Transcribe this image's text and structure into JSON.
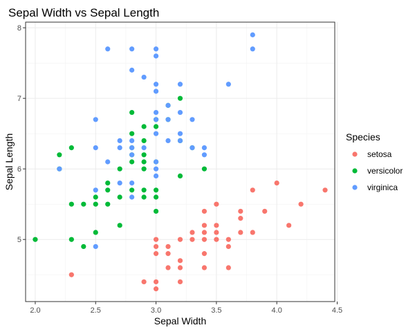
{
  "chart_data": {
    "type": "scatter",
    "title": "Sepal Width vs Sepal Length",
    "xlabel": "Sepal Width",
    "ylabel": "Sepal Length",
    "xlim": [
      1.92,
      4.48
    ],
    "ylim": [
      4.12,
      8.08
    ],
    "xticks": [
      "2.0",
      "2.5",
      "3.0",
      "3.5",
      "4.0",
      "4.5"
    ],
    "yticks": [
      "5",
      "6",
      "7",
      "8"
    ],
    "grid": true,
    "legend": {
      "title": "Species",
      "position": "right"
    },
    "series": [
      {
        "name": "setosa",
        "color": "#F8766D",
        "points": [
          [
            2.3,
            4.5
          ],
          [
            2.9,
            4.4
          ],
          [
            3.0,
            4.4
          ],
          [
            3.2,
            4.4
          ],
          [
            3.0,
            4.3
          ],
          [
            3.0,
            4.8
          ],
          [
            3.0,
            4.9
          ],
          [
            3.0,
            5.0
          ],
          [
            3.1,
            4.6
          ],
          [
            3.1,
            4.8
          ],
          [
            3.1,
            4.9
          ],
          [
            3.2,
            4.6
          ],
          [
            3.2,
            4.7
          ],
          [
            3.2,
            5.0
          ],
          [
            3.3,
            5.0
          ],
          [
            3.3,
            5.1
          ],
          [
            3.4,
            4.6
          ],
          [
            3.4,
            4.8
          ],
          [
            3.4,
            5.0
          ],
          [
            3.4,
            5.1
          ],
          [
            3.4,
            5.2
          ],
          [
            3.4,
            5.4
          ],
          [
            3.5,
            5.0
          ],
          [
            3.5,
            5.1
          ],
          [
            3.5,
            5.2
          ],
          [
            3.5,
            5.5
          ],
          [
            3.6,
            4.6
          ],
          [
            3.6,
            4.9
          ],
          [
            3.6,
            5.0
          ],
          [
            3.7,
            5.1
          ],
          [
            3.7,
            5.3
          ],
          [
            3.7,
            5.4
          ],
          [
            3.8,
            5.1
          ],
          [
            3.8,
            5.7
          ],
          [
            3.9,
            5.4
          ],
          [
            4.0,
            5.8
          ],
          [
            4.1,
            5.2
          ],
          [
            4.2,
            5.5
          ],
          [
            4.4,
            5.7
          ]
        ]
      },
      {
        "name": "versicolor",
        "color": "#00BA38",
        "points": [
          [
            2.0,
            5.0
          ],
          [
            2.2,
            6.0
          ],
          [
            2.2,
            6.2
          ],
          [
            2.3,
            5.0
          ],
          [
            2.3,
            5.5
          ],
          [
            2.3,
            6.3
          ],
          [
            2.4,
            4.9
          ],
          [
            2.4,
            5.5
          ],
          [
            2.5,
            5.1
          ],
          [
            2.5,
            5.5
          ],
          [
            2.5,
            5.6
          ],
          [
            2.6,
            5.5
          ],
          [
            2.6,
            5.7
          ],
          [
            2.6,
            5.8
          ],
          [
            2.7,
            5.2
          ],
          [
            2.7,
            5.6
          ],
          [
            2.7,
            6.0
          ],
          [
            2.8,
            5.7
          ],
          [
            2.8,
            6.1
          ],
          [
            2.8,
            6.2
          ],
          [
            2.8,
            6.3
          ],
          [
            2.8,
            6.5
          ],
          [
            2.8,
            6.8
          ],
          [
            2.9,
            5.6
          ],
          [
            2.9,
            5.7
          ],
          [
            2.9,
            6.0
          ],
          [
            2.9,
            6.1
          ],
          [
            2.9,
            6.2
          ],
          [
            2.9,
            6.4
          ],
          [
            2.9,
            6.6
          ],
          [
            3.0,
            5.4
          ],
          [
            3.0,
            5.6
          ],
          [
            3.0,
            5.7
          ],
          [
            3.0,
            6.1
          ],
          [
            3.0,
            6.6
          ],
          [
            3.0,
            6.7
          ],
          [
            3.1,
            6.7
          ],
          [
            3.1,
            6.9
          ],
          [
            3.2,
            5.9
          ],
          [
            3.2,
            6.4
          ],
          [
            3.2,
            7.0
          ],
          [
            3.3,
            6.3
          ],
          [
            3.4,
            6.0
          ]
        ]
      },
      {
        "name": "virginica",
        "color": "#619CFF",
        "points": [
          [
            2.2,
            6.0
          ],
          [
            2.5,
            4.9
          ],
          [
            2.5,
            5.7
          ],
          [
            2.5,
            6.3
          ],
          [
            2.5,
            6.7
          ],
          [
            2.6,
            6.1
          ],
          [
            2.6,
            7.7
          ],
          [
            2.7,
            5.8
          ],
          [
            2.7,
            6.3
          ],
          [
            2.7,
            6.4
          ],
          [
            2.8,
            5.6
          ],
          [
            2.8,
            5.8
          ],
          [
            2.8,
            6.2
          ],
          [
            2.8,
            6.3
          ],
          [
            2.8,
            6.4
          ],
          [
            2.8,
            7.4
          ],
          [
            2.8,
            7.7
          ],
          [
            2.9,
            6.3
          ],
          [
            2.9,
            7.3
          ],
          [
            3.0,
            5.9
          ],
          [
            3.0,
            6.0
          ],
          [
            3.0,
            6.1
          ],
          [
            3.0,
            6.5
          ],
          [
            3.0,
            6.7
          ],
          [
            3.0,
            6.8
          ],
          [
            3.0,
            7.1
          ],
          [
            3.0,
            7.2
          ],
          [
            3.0,
            7.6
          ],
          [
            3.0,
            7.7
          ],
          [
            3.1,
            6.4
          ],
          [
            3.1,
            6.7
          ],
          [
            3.1,
            6.9
          ],
          [
            3.2,
            6.4
          ],
          [
            3.2,
            6.5
          ],
          [
            3.2,
            6.8
          ],
          [
            3.2,
            7.2
          ],
          [
            3.3,
            6.3
          ],
          [
            3.3,
            6.7
          ],
          [
            3.4,
            6.2
          ],
          [
            3.4,
            6.3
          ],
          [
            3.6,
            7.2
          ],
          [
            3.8,
            7.7
          ],
          [
            3.8,
            7.9
          ]
        ]
      }
    ]
  }
}
